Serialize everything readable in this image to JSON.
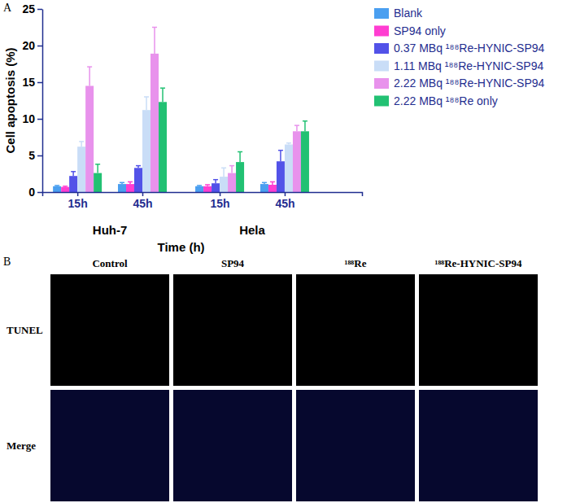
{
  "chart_data": {
    "type": "bar",
    "categories": [
      "15h",
      "45h",
      "15h",
      "45h"
    ],
    "category_groups": [
      "Huh-7",
      "Hela"
    ],
    "x_label": "Time (h)",
    "y_label": "Cell apoptosis (%)",
    "ylim": [
      0,
      25
    ],
    "yticks": [
      0,
      5,
      10,
      15,
      20,
      25
    ],
    "grid": false,
    "legend": "right",
    "series": [
      {
        "name": "Blank",
        "color": "#4a9ff0",
        "values": [
          0.8,
          1.1,
          0.8,
          1.1
        ],
        "errors": [
          0.1,
          0.2,
          0.1,
          0.2
        ]
      },
      {
        "name": "SP94 only",
        "color": "#ff3dd1",
        "values": [
          0.7,
          1.1,
          0.8,
          1.0
        ],
        "errors": [
          0.1,
          0.3,
          0.2,
          0.4
        ]
      },
      {
        "name": "0.37 MBq ¹⁸⁸Re-HYNIC-SP94",
        "color": "#5252e8",
        "values": [
          2.2,
          3.3,
          1.2,
          4.2
        ],
        "errors": [
          0.6,
          0.3,
          0.5,
          1.5
        ]
      },
      {
        "name": "1.11 MBq ¹⁸⁸Re-HYNIC-SP94",
        "color": "#c9ddf7",
        "values": [
          6.2,
          11.2,
          2.1,
          6.5
        ],
        "errors": [
          0.7,
          1.8,
          1.2,
          0.2
        ]
      },
      {
        "name": "2.22 MBq ¹⁸⁸Re-HYNIC-SP94",
        "color": "#e892ec",
        "values": [
          14.5,
          18.9,
          2.6,
          8.3
        ],
        "errors": [
          2.6,
          3.6,
          1.0,
          0.8
        ]
      },
      {
        "name": "2.22 MBq ¹⁸⁸Re only",
        "color": "#22c173",
        "values": [
          2.6,
          12.3,
          4.1,
          8.3
        ],
        "errors": [
          1.2,
          1.9,
          1.4,
          1.4
        ]
      }
    ]
  },
  "panel_labels": [
    "A",
    "B"
  ],
  "image_panel": {
    "columns": [
      "Control",
      "SP94",
      "¹⁸⁸Re",
      "¹⁸⁸Re-HYNIC-SP94"
    ],
    "rows": [
      "TUNEL",
      "Merge"
    ]
  }
}
